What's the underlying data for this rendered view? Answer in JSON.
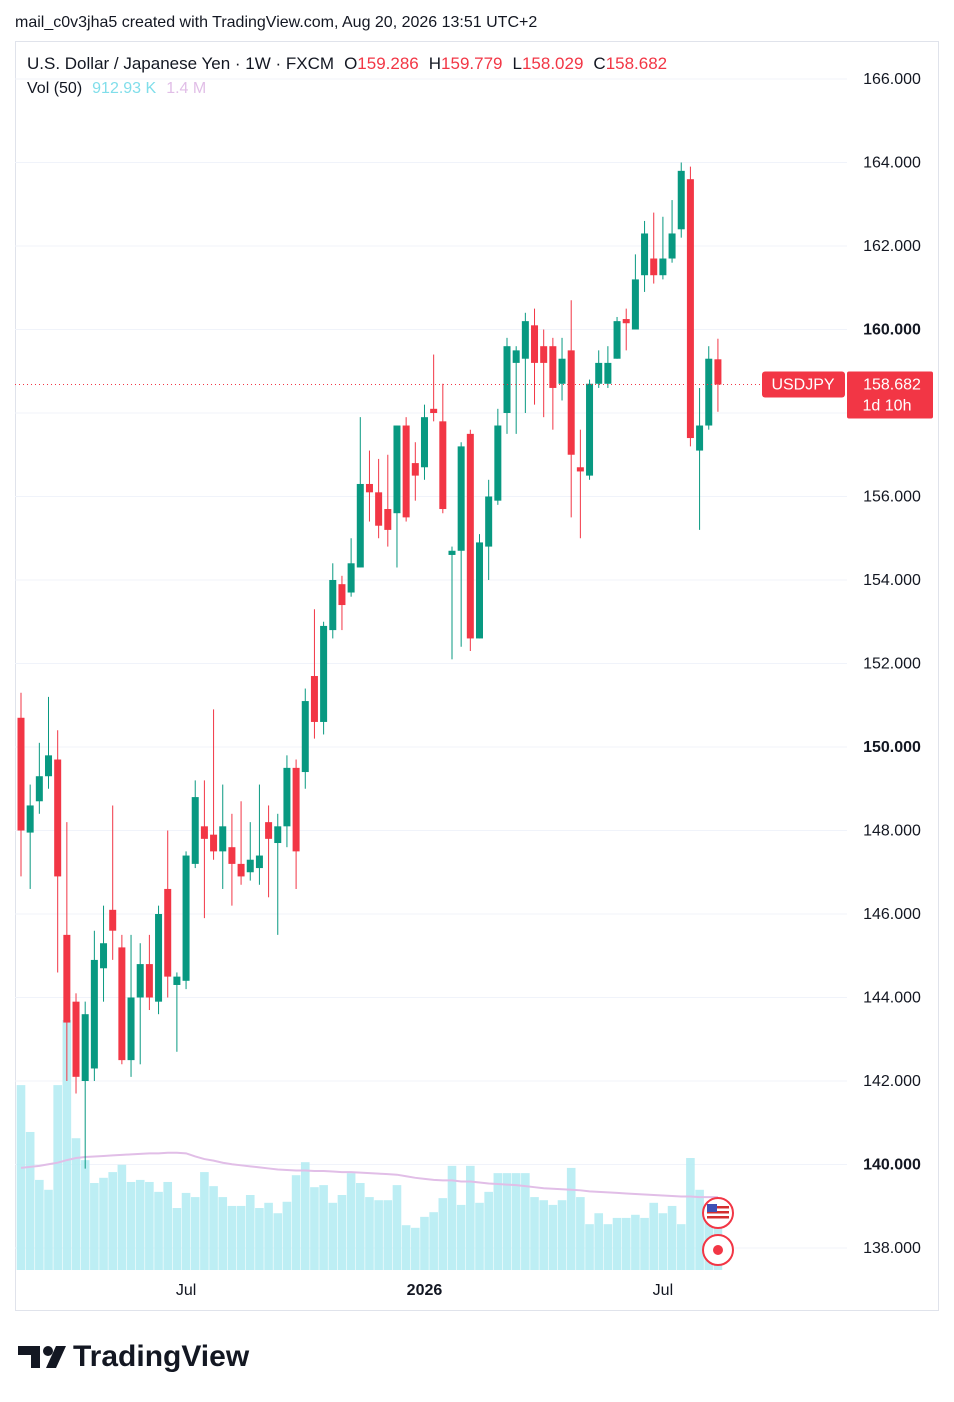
{
  "header": {
    "credit": "mail_c0v3jha5 created with TradingView.com, Aug 20, 2026 13:51 UTC+2",
    "brand": "TradingView"
  },
  "chart_data": {
    "type": "candlestick",
    "title": "U.S. Dollar / Japanese Yen · 1W · FXCM",
    "ohlc_labels": [
      "O",
      "H",
      "L",
      "C"
    ],
    "symbol": "USDJPY",
    "countdown": "1d 10h",
    "up_color": "#089981",
    "down_color": "#f23645",
    "categories": [
      null,
      null,
      null,
      null,
      null,
      null,
      null,
      null,
      null,
      null,
      null,
      null,
      null,
      null,
      null,
      null,
      null,
      null,
      "Jul",
      null,
      null,
      null,
      null,
      null,
      null,
      null,
      null,
      null,
      null,
      null,
      null,
      null,
      null,
      null,
      null,
      null,
      null,
      null,
      null,
      null,
      null,
      null,
      null,
      null,
      "2026",
      null,
      null,
      null,
      null,
      null,
      null,
      null,
      null,
      null,
      null,
      null,
      null,
      null,
      null,
      null,
      null,
      null,
      null,
      null,
      null,
      null,
      null,
      null,
      null,
      null,
      "Jul",
      null,
      null,
      null,
      null,
      null,
      null
    ],
    "open": [
      150.7,
      147.95,
      148.7,
      149.3,
      149.7,
      145.5,
      143.9,
      142.0,
      142.3,
      144.7,
      146.1,
      145.2,
      142.5,
      144.0,
      144.8,
      143.9,
      146.6,
      144.3,
      144.4,
      147.2,
      148.1,
      147.9,
      147.5,
      147.6,
      147.2,
      147.0,
      147.1,
      148.2,
      147.7,
      148.1,
      149.5,
      149.4,
      151.7,
      150.6,
      152.8,
      153.9,
      153.7,
      154.3,
      156.3,
      156.1,
      155.7,
      155.6,
      157.7,
      156.8,
      156.7,
      158.1,
      157.8,
      154.6,
      154.7,
      157.5,
      152.6,
      154.8,
      155.9,
      158.0,
      159.2,
      159.3,
      160.1,
      159.6,
      159.6,
      158.7,
      159.5,
      156.7,
      156.5,
      158.7,
      158.7,
      159.3,
      160.25,
      160.0,
      161.3,
      161.7,
      161.3,
      161.7,
      162.4,
      163.6,
      157.1,
      157.7,
      159.286
    ],
    "high": [
      151.3,
      149.1,
      150.1,
      151.2,
      150.4,
      148.2,
      144.1,
      143.9,
      145.6,
      146.2,
      148.6,
      145.5,
      145.5,
      145.3,
      145.5,
      146.2,
      148.0,
      144.6,
      147.5,
      149.2,
      149.2,
      150.9,
      149.1,
      148.4,
      148.7,
      148.2,
      149.1,
      148.6,
      148.4,
      149.8,
      149.7,
      151.4,
      153.3,
      153.0,
      154.4,
      154.1,
      155.0,
      157.9,
      157.1,
      156.9,
      157.0,
      157.7,
      157.9,
      157.3,
      158.2,
      159.4,
      158.7,
      154.8,
      157.3,
      157.6,
      155.1,
      156.4,
      158.1,
      159.8,
      159.6,
      160.4,
      160.5,
      160.0,
      159.8,
      159.8,
      160.7,
      157.6,
      158.8,
      159.5,
      159.6,
      160.3,
      160.5,
      161.8,
      162.6,
      162.8,
      162.7,
      163.1,
      164.0,
      163.9,
      158.6,
      159.6,
      159.779
    ],
    "low": [
      146.9,
      146.6,
      148.4,
      149.0,
      144.6,
      142.0,
      141.7,
      139.9,
      142.0,
      143.9,
      144.9,
      142.4,
      142.1,
      142.4,
      143.7,
      143.6,
      144.0,
      142.7,
      144.2,
      147.1,
      145.9,
      147.3,
      146.6,
      146.2,
      146.7,
      146.8,
      146.7,
      146.4,
      145.5,
      147.6,
      146.6,
      149.0,
      150.2,
      150.3,
      152.6,
      152.8,
      153.6,
      154.3,
      155.4,
      155.0,
      154.8,
      154.3,
      155.4,
      155.9,
      156.4,
      157.8,
      155.6,
      152.1,
      152.4,
      152.3,
      152.6,
      154.0,
      155.8,
      157.5,
      157.5,
      158.0,
      158.2,
      157.9,
      157.6,
      158.3,
      155.5,
      155.0,
      156.4,
      158.6,
      158.6,
      159.3,
      159.5,
      160.0,
      160.9,
      161.1,
      161.2,
      161.6,
      162.2,
      157.2,
      155.2,
      157.6,
      158.029
    ],
    "close": [
      148.0,
      148.6,
      149.3,
      149.8,
      146.9,
      143.4,
      142.1,
      143.6,
      144.9,
      145.3,
      145.6,
      142.5,
      144.0,
      144.8,
      144.0,
      146.0,
      144.5,
      144.5,
      147.4,
      148.8,
      147.8,
      147.5,
      148.1,
      147.2,
      146.9,
      147.3,
      147.4,
      147.8,
      148.1,
      149.5,
      147.5,
      151.1,
      150.6,
      152.9,
      154.0,
      153.4,
      154.4,
      156.3,
      156.1,
      155.3,
      155.2,
      157.7,
      155.5,
      156.5,
      157.9,
      158.0,
      155.7,
      154.7,
      157.2,
      152.6,
      154.9,
      156.0,
      157.7,
      159.6,
      159.5,
      160.2,
      159.2,
      159.2,
      158.6,
      159.3,
      157.0,
      156.6,
      158.7,
      159.2,
      159.2,
      160.2,
      160.15,
      161.2,
      162.3,
      161.3,
      161.7,
      162.3,
      163.8,
      157.4,
      157.7,
      159.3,
      158.682
    ],
    "ylim": [
      137.473,
      166.886
    ],
    "yticks": [
      {
        "value": 138,
        "label": "138.000"
      },
      {
        "value": 140,
        "label": "140.000"
      },
      {
        "value": 142,
        "label": "142.000"
      },
      {
        "value": 144,
        "label": "144.000"
      },
      {
        "value": 146,
        "label": "146.000"
      },
      {
        "value": 148,
        "label": "148.000"
      },
      {
        "value": 150,
        "label": "150.000"
      },
      {
        "value": 152,
        "label": "152.000"
      },
      {
        "value": 154,
        "label": "154.000"
      },
      {
        "value": 156,
        "label": "156.000"
      },
      {
        "value": 158,
        "label": "158.000"
      },
      {
        "value": 160,
        "label": "160.000"
      },
      {
        "value": 162,
        "label": "162.000"
      },
      {
        "value": 164,
        "label": "164.000"
      },
      {
        "value": 166,
        "label": "166.000"
      }
    ],
    "grid": true,
    "volume": {
      "label": "Vol (50)",
      "value_label": "912.93 K",
      "ma_label": "1.4 M",
      "color": "#b2ebf2",
      "ma_color": "#e1bee7",
      "values": [
        3550,
        2650,
        1730,
        1540,
        3550,
        4800,
        2530,
        2110,
        1670,
        1770,
        1880,
        2020,
        1690,
        1730,
        1690,
        1500,
        1690,
        1190,
        1480,
        1400,
        1880,
        1610,
        1400,
        1230,
        1230,
        1440,
        1190,
        1290,
        1090,
        1310,
        1820,
        2070,
        1590,
        1630,
        1290,
        1440,
        1860,
        1670,
        1400,
        1340,
        1340,
        1630,
        860,
        810,
        1020,
        1110,
        1380,
        2000,
        1250,
        2000,
        1290,
        1500,
        1860,
        1860,
        1860,
        1860,
        1400,
        1340,
        1250,
        1340,
        1960,
        1400,
        880,
        1090,
        880,
        1000,
        1000,
        1060,
        1000,
        1290,
        1090,
        1230,
        880,
        2150,
        1540,
        960,
        912.93
      ],
      "ma": [
        1960,
        1980,
        2000,
        2030,
        2060,
        2110,
        2150,
        2170,
        2180,
        2190,
        2200,
        2210,
        2220,
        2230,
        2240,
        2240,
        2250,
        2250,
        2240,
        2180,
        2130,
        2100,
        2060,
        2030,
        2010,
        1990,
        1970,
        1950,
        1930,
        1920,
        1910,
        1910,
        1900,
        1900,
        1890,
        1880,
        1880,
        1870,
        1860,
        1850,
        1840,
        1830,
        1800,
        1770,
        1750,
        1730,
        1720,
        1720,
        1700,
        1700,
        1680,
        1660,
        1650,
        1640,
        1630,
        1610,
        1590,
        1570,
        1560,
        1550,
        1540,
        1530,
        1510,
        1500,
        1490,
        1480,
        1470,
        1460,
        1450,
        1440,
        1430,
        1420,
        1410,
        1410,
        1400,
        1400,
        1400
      ]
    }
  }
}
